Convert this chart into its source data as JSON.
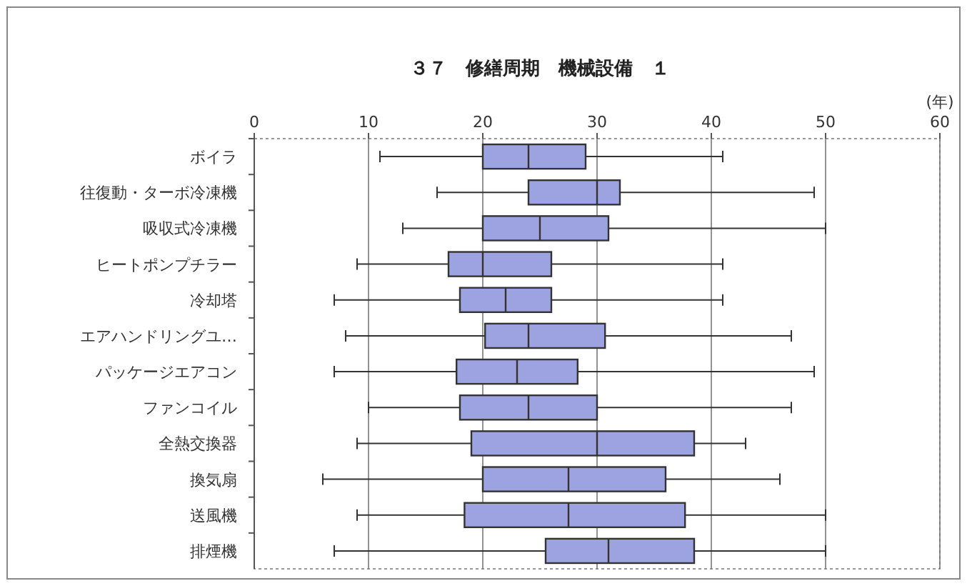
{
  "chart_data": {
    "type": "box",
    "orientation": "horizontal",
    "title": "３７　修繕周期　機械設備　１",
    "xlabel": "(年)",
    "categories": [
      "ボイラ",
      "往復動・ターボ冷凍機",
      "吸収式冷凍機",
      "ヒートポンプチラー",
      "冷却塔",
      "エアハンドリングユ…",
      "パッケージエアコン",
      "ファンコイル",
      "全熱交換器",
      "換気扇",
      "送風機",
      "排煙機"
    ],
    "boxes": [
      {
        "low": 11,
        "q1": 20,
        "median": 24,
        "q3": 29,
        "high": 41
      },
      {
        "low": 16,
        "q1": 24,
        "median": 30,
        "q3": 32,
        "high": 49
      },
      {
        "low": 13,
        "q1": 20,
        "median": 25,
        "q3": 31,
        "high": 50
      },
      {
        "low": 9,
        "q1": 17,
        "median": 20,
        "q3": 26,
        "high": 41
      },
      {
        "low": 7,
        "q1": 18,
        "median": 22,
        "q3": 26,
        "high": 41
      },
      {
        "low": 8,
        "q1": 20.2,
        "median": 24,
        "q3": 30.7,
        "high": 47
      },
      {
        "low": 7,
        "q1": 17.7,
        "median": 23,
        "q3": 28.3,
        "high": 49
      },
      {
        "low": 10,
        "q1": 18,
        "median": 24,
        "q3": 30,
        "high": 47
      },
      {
        "low": 9,
        "q1": 19,
        "median": 30,
        "q3": 38.5,
        "high": 43
      },
      {
        "low": 6,
        "q1": 20,
        "median": 27.5,
        "q3": 36,
        "high": 46
      },
      {
        "low": 9,
        "q1": 18.4,
        "median": 27.5,
        "q3": 37.7,
        "high": 50
      },
      {
        "low": 7,
        "q1": 25.5,
        "median": 31,
        "q3": 38.5,
        "high": 50
      }
    ],
    "color": "#9da3e0",
    "xlim": [
      0,
      60
    ],
    "xticks": [
      0,
      10,
      20,
      30,
      40,
      50,
      60
    ],
    "grid": "x"
  }
}
